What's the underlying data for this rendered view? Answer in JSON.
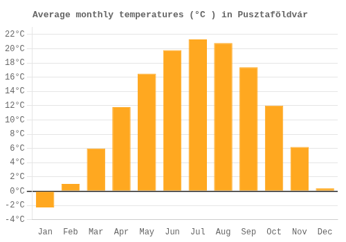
{
  "chart_data": {
    "type": "bar",
    "title": "Average monthly temperatures (°C ) in Pusztaföldvár",
    "categories": [
      "Jan",
      "Feb",
      "Mar",
      "Apr",
      "May",
      "Jun",
      "Jul",
      "Aug",
      "Sep",
      "Oct",
      "Nov",
      "Dec"
    ],
    "values": [
      -2.3,
      1.0,
      6.0,
      11.8,
      16.5,
      19.8,
      21.3,
      20.8,
      17.4,
      12.0,
      6.2,
      0.4
    ],
    "color": "#FFA820",
    "ylim": [
      -4,
      23
    ],
    "yticks": [
      {
        "value": -4,
        "label": "-4°C"
      },
      {
        "value": -2,
        "label": "-2°C"
      },
      {
        "value": 0,
        "label": "0°C"
      },
      {
        "value": 2,
        "label": "2°C"
      },
      {
        "value": 4,
        "label": "4°C"
      },
      {
        "value": 6,
        "label": "6°C"
      },
      {
        "value": 8,
        "label": "8°C"
      },
      {
        "value": 10,
        "label": "10°C"
      },
      {
        "value": 12,
        "label": "12°C"
      },
      {
        "value": 14,
        "label": "14°C"
      },
      {
        "value": 16,
        "label": "16°C"
      },
      {
        "value": 18,
        "label": "18°C"
      },
      {
        "value": 20,
        "label": "20°C"
      },
      {
        "value": 22,
        "label": "22°C"
      }
    ],
    "grid": true
  }
}
